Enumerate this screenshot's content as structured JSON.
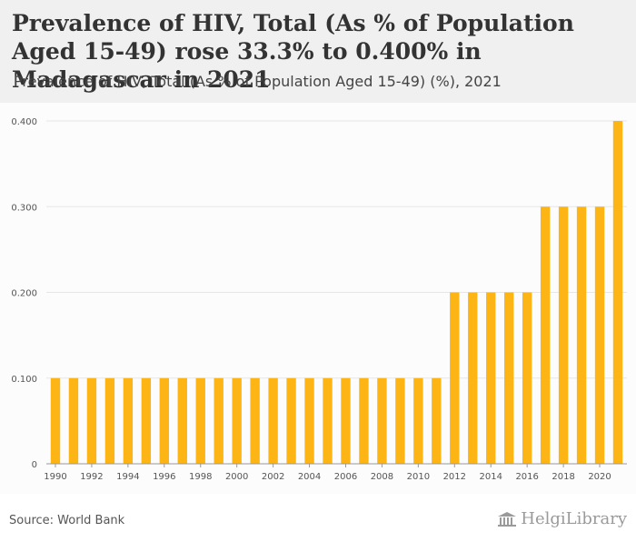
{
  "header": {
    "title": "Prevalence of HIV, Total (As % of Population Aged 15-49) rose 33.3% to 0.400% in Madagascar in 2021",
    "subtitle": "Prevalence of HIV, Total (As % of Population Aged 15-49) (%), 2021"
  },
  "footer": {
    "source": "Source: World Bank",
    "logo_text": "HelgiLibrary"
  },
  "colors": {
    "bar": "#fdb515",
    "grid": "#e6e6e6",
    "header_bg": "#f0f0f0"
  },
  "chart_data": {
    "type": "bar",
    "categories": [
      "1990",
      "1991",
      "1992",
      "1993",
      "1994",
      "1995",
      "1996",
      "1997",
      "1998",
      "1999",
      "2000",
      "2001",
      "2002",
      "2003",
      "2004",
      "2005",
      "2006",
      "2007",
      "2008",
      "2009",
      "2010",
      "2011",
      "2012",
      "2013",
      "2014",
      "2015",
      "2016",
      "2017",
      "2018",
      "2019",
      "2020",
      "2021"
    ],
    "values": [
      0.1,
      0.1,
      0.1,
      0.1,
      0.1,
      0.1,
      0.1,
      0.1,
      0.1,
      0.1,
      0.1,
      0.1,
      0.1,
      0.1,
      0.1,
      0.1,
      0.1,
      0.1,
      0.1,
      0.1,
      0.1,
      0.1,
      0.2,
      0.2,
      0.2,
      0.2,
      0.2,
      0.3,
      0.3,
      0.3,
      0.3,
      0.4
    ],
    "x_tick_labels": [
      "1990",
      "1992",
      "1994",
      "1996",
      "1998",
      "2000",
      "2002",
      "2004",
      "2006",
      "2008",
      "2010",
      "2012",
      "2014",
      "2016",
      "2018",
      "2020"
    ],
    "y_ticks": [
      0,
      0.1,
      0.2,
      0.3,
      0.4
    ],
    "y_tick_labels": [
      "0",
      "0.100",
      "0.200",
      "0.300",
      "0.400"
    ],
    "ylim": [
      0,
      0.4
    ],
    "grid": true,
    "xlabel": "",
    "ylabel": ""
  }
}
